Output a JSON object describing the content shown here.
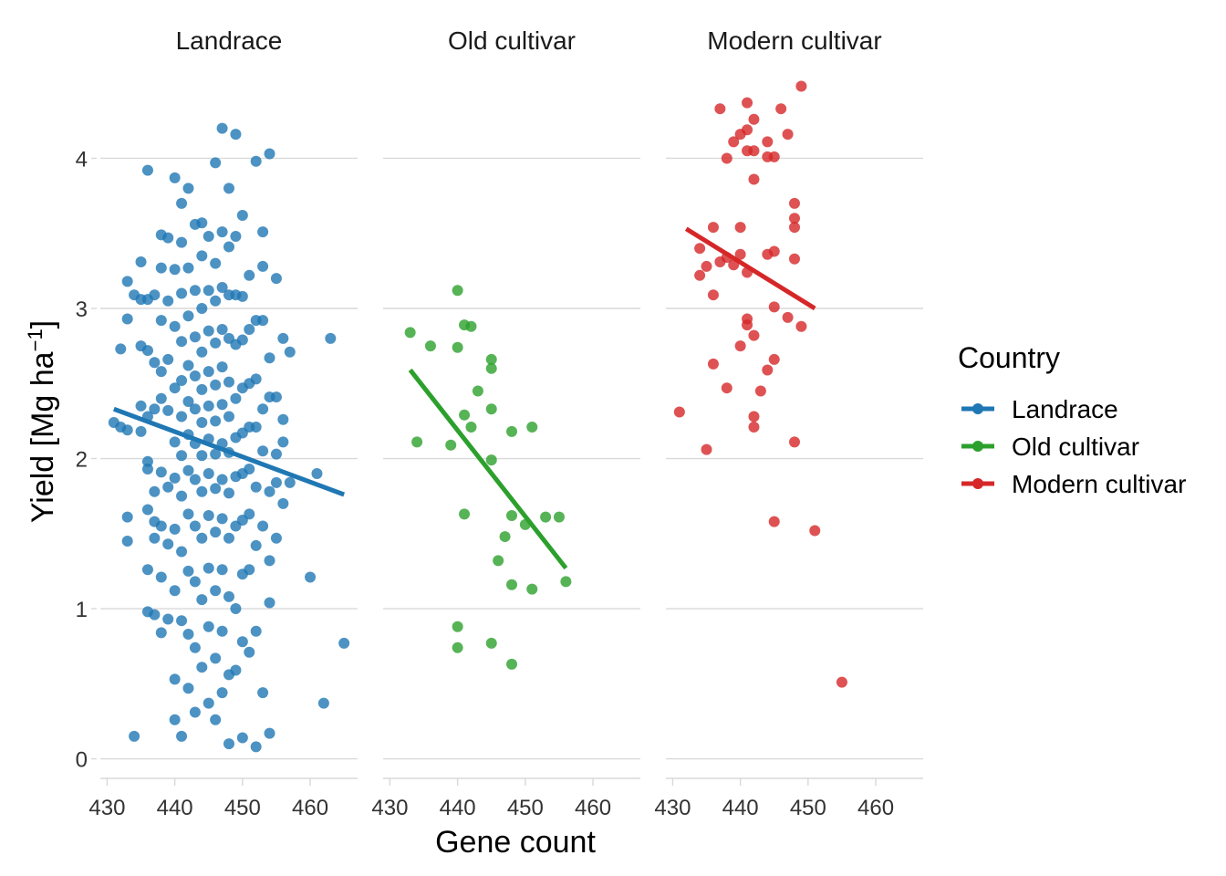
{
  "chart_data": {
    "type": "scatter",
    "facets": [
      {
        "title": "Landrace",
        "color": "#1f77b4",
        "fit": {
          "x": [
            431,
            465
          ],
          "y": [
            2.33,
            1.76
          ]
        },
        "points": [
          [
            431,
            2.24
          ],
          [
            432,
            2.21
          ],
          [
            433,
            2.19
          ],
          [
            432,
            2.73
          ],
          [
            433,
            3.18
          ],
          [
            433,
            2.93
          ],
          [
            433,
            1.61
          ],
          [
            433,
            1.45
          ],
          [
            434,
            0.15
          ],
          [
            434,
            3.09
          ],
          [
            435,
            3.31
          ],
          [
            435,
            3.06
          ],
          [
            435,
            2.75
          ],
          [
            435,
            2.35
          ],
          [
            435,
            2.18
          ],
          [
            436,
            3.92
          ],
          [
            436,
            3.06
          ],
          [
            436,
            2.72
          ],
          [
            436,
            2.28
          ],
          [
            436,
            1.98
          ],
          [
            436,
            1.93
          ],
          [
            436,
            1.66
          ],
          [
            436,
            1.26
          ],
          [
            436,
            0.98
          ],
          [
            437,
            3.09
          ],
          [
            437,
            2.64
          ],
          [
            437,
            2.33
          ],
          [
            437,
            1.78
          ],
          [
            437,
            1.58
          ],
          [
            437,
            1.47
          ],
          [
            437,
            0.96
          ],
          [
            438,
            3.49
          ],
          [
            438,
            3.27
          ],
          [
            438,
            2.92
          ],
          [
            438,
            2.58
          ],
          [
            438,
            2.4
          ],
          [
            438,
            1.91
          ],
          [
            438,
            1.55
          ],
          [
            438,
            1.21
          ],
          [
            438,
            0.84
          ],
          [
            439,
            3.47
          ],
          [
            439,
            3.05
          ],
          [
            439,
            2.66
          ],
          [
            439,
            2.32
          ],
          [
            439,
            1.81
          ],
          [
            439,
            1.43
          ],
          [
            439,
            0.93
          ],
          [
            440,
            3.87
          ],
          [
            440,
            3.26
          ],
          [
            440,
            2.88
          ],
          [
            440,
            2.47
          ],
          [
            440,
            2.11
          ],
          [
            440,
            1.87
          ],
          [
            440,
            1.53
          ],
          [
            440,
            1.12
          ],
          [
            440,
            0.53
          ],
          [
            440,
            0.26
          ],
          [
            441,
            3.7
          ],
          [
            441,
            3.44
          ],
          [
            441,
            3.1
          ],
          [
            441,
            2.78
          ],
          [
            441,
            2.52
          ],
          [
            441,
            2.28
          ],
          [
            441,
            2.02
          ],
          [
            441,
            1.75
          ],
          [
            441,
            1.38
          ],
          [
            441,
            0.92
          ],
          [
            441,
            0.15
          ],
          [
            442,
            3.8
          ],
          [
            442,
            3.27
          ],
          [
            442,
            2.95
          ],
          [
            442,
            2.62
          ],
          [
            442,
            2.38
          ],
          [
            442,
            2.16
          ],
          [
            442,
            1.92
          ],
          [
            442,
            1.63
          ],
          [
            442,
            1.25
          ],
          [
            442,
            0.83
          ],
          [
            442,
            0.47
          ],
          [
            443,
            3.56
          ],
          [
            443,
            3.12
          ],
          [
            443,
            2.81
          ],
          [
            443,
            2.55
          ],
          [
            443,
            2.33
          ],
          [
            443,
            2.1
          ],
          [
            443,
            1.86
          ],
          [
            443,
            1.55
          ],
          [
            443,
            1.18
          ],
          [
            443,
            0.74
          ],
          [
            443,
            0.31
          ],
          [
            444,
            3.57
          ],
          [
            444,
            3.35
          ],
          [
            444,
            3.0
          ],
          [
            444,
            2.71
          ],
          [
            444,
            2.46
          ],
          [
            444,
            2.24
          ],
          [
            444,
            2.02
          ],
          [
            444,
            1.78
          ],
          [
            444,
            1.47
          ],
          [
            444,
            1.06
          ],
          [
            444,
            0.61
          ],
          [
            445,
            3.48
          ],
          [
            445,
            3.12
          ],
          [
            445,
            2.85
          ],
          [
            445,
            2.58
          ],
          [
            445,
            2.35
          ],
          [
            445,
            2.13
          ],
          [
            445,
            1.9
          ],
          [
            445,
            1.62
          ],
          [
            445,
            1.27
          ],
          [
            445,
            0.88
          ],
          [
            445,
            0.37
          ],
          [
            446,
            3.97
          ],
          [
            446,
            3.3
          ],
          [
            446,
            3.05
          ],
          [
            446,
            2.77
          ],
          [
            446,
            2.49
          ],
          [
            446,
            2.25
          ],
          [
            446,
            2.03
          ],
          [
            446,
            1.8
          ],
          [
            446,
            1.51
          ],
          [
            446,
            1.12
          ],
          [
            446,
            0.67
          ],
          [
            446,
            0.26
          ],
          [
            447,
            4.2
          ],
          [
            447,
            3.51
          ],
          [
            447,
            3.14
          ],
          [
            447,
            2.86
          ],
          [
            447,
            2.61
          ],
          [
            447,
            2.36
          ],
          [
            447,
            2.1
          ],
          [
            447,
            1.86
          ],
          [
            447,
            1.6
          ],
          [
            447,
            1.26
          ],
          [
            447,
            0.85
          ],
          [
            447,
            0.44
          ],
          [
            448,
            3.8
          ],
          [
            448,
            3.41
          ],
          [
            448,
            3.09
          ],
          [
            448,
            2.8
          ],
          [
            448,
            2.51
          ],
          [
            448,
            2.28
          ],
          [
            448,
            2.04
          ],
          [
            448,
            1.77
          ],
          [
            448,
            1.47
          ],
          [
            448,
            1.08
          ],
          [
            448,
            0.56
          ],
          [
            448,
            0.1
          ],
          [
            449,
            4.16
          ],
          [
            449,
            3.48
          ],
          [
            449,
            3.09
          ],
          [
            449,
            2.76
          ],
          [
            449,
            2.4
          ],
          [
            449,
            2.14
          ],
          [
            449,
            1.88
          ],
          [
            449,
            1.55
          ],
          [
            449,
            1.0
          ],
          [
            449,
            0.59
          ],
          [
            450,
            3.62
          ],
          [
            450,
            3.08
          ],
          [
            450,
            2.79
          ],
          [
            450,
            2.47
          ],
          [
            450,
            2.17
          ],
          [
            450,
            1.9
          ],
          [
            450,
            1.59
          ],
          [
            450,
            1.23
          ],
          [
            450,
            0.78
          ],
          [
            450,
            0.14
          ],
          [
            451,
            3.22
          ],
          [
            451,
            2.86
          ],
          [
            451,
            2.5
          ],
          [
            451,
            2.21
          ],
          [
            451,
            1.93
          ],
          [
            451,
            1.63
          ],
          [
            451,
            1.26
          ],
          [
            451,
            0.71
          ],
          [
            452,
            3.98
          ],
          [
            452,
            2.92
          ],
          [
            452,
            2.53
          ],
          [
            452,
            2.21
          ],
          [
            452,
            1.81
          ],
          [
            452,
            1.42
          ],
          [
            452,
            0.85
          ],
          [
            452,
            0.08
          ],
          [
            453,
            3.51
          ],
          [
            453,
            3.28
          ],
          [
            453,
            2.92
          ],
          [
            453,
            2.33
          ],
          [
            453,
            2.05
          ],
          [
            453,
            1.55
          ],
          [
            453,
            0.44
          ],
          [
            454,
            4.03
          ],
          [
            454,
            2.67
          ],
          [
            454,
            2.41
          ],
          [
            454,
            1.78
          ],
          [
            454,
            1.32
          ],
          [
            454,
            1.04
          ],
          [
            454,
            0.17
          ],
          [
            455,
            3.2
          ],
          [
            455,
            2.41
          ],
          [
            455,
            2.03
          ],
          [
            455,
            1.84
          ],
          [
            455,
            1.47
          ],
          [
            456,
            2.8
          ],
          [
            456,
            2.26
          ],
          [
            456,
            2.11
          ],
          [
            456,
            1.7
          ],
          [
            457,
            2.71
          ],
          [
            457,
            1.84
          ],
          [
            460,
            1.21
          ],
          [
            461,
            1.9
          ],
          [
            462,
            0.37
          ],
          [
            463,
            2.8
          ],
          [
            465,
            0.77
          ]
        ]
      },
      {
        "title": "Old cultivar",
        "color": "#2ca02c",
        "fit": {
          "x": [
            433,
            456
          ],
          "y": [
            2.59,
            1.27
          ]
        },
        "points": [
          [
            433,
            2.84
          ],
          [
            434,
            2.11
          ],
          [
            436,
            2.75
          ],
          [
            439,
            2.09
          ],
          [
            440,
            3.12
          ],
          [
            440,
            2.74
          ],
          [
            440,
            0.88
          ],
          [
            440,
            0.74
          ],
          [
            441,
            2.89
          ],
          [
            441,
            2.29
          ],
          [
            441,
            1.63
          ],
          [
            442,
            2.88
          ],
          [
            442,
            2.21
          ],
          [
            443,
            2.45
          ],
          [
            445,
            2.66
          ],
          [
            445,
            2.6
          ],
          [
            445,
            2.33
          ],
          [
            445,
            1.99
          ],
          [
            445,
            0.77
          ],
          [
            446,
            1.32
          ],
          [
            447,
            1.48
          ],
          [
            448,
            2.18
          ],
          [
            448,
            1.62
          ],
          [
            448,
            1.16
          ],
          [
            448,
            0.63
          ],
          [
            450,
            1.56
          ],
          [
            451,
            2.21
          ],
          [
            451,
            1.13
          ],
          [
            453,
            1.61
          ],
          [
            455,
            1.61
          ],
          [
            456,
            1.18
          ]
        ]
      },
      {
        "title": "Modern cultivar",
        "color": "#d62728",
        "fit": {
          "x": [
            432,
            451
          ],
          "y": [
            3.53,
            3.0
          ]
        },
        "points": [
          [
            431,
            2.31
          ],
          [
            434,
            3.4
          ],
          [
            434,
            3.22
          ],
          [
            435,
            3.28
          ],
          [
            435,
            2.06
          ],
          [
            436,
            3.54
          ],
          [
            436,
            3.09
          ],
          [
            436,
            2.63
          ],
          [
            437,
            4.33
          ],
          [
            437,
            3.31
          ],
          [
            438,
            4.0
          ],
          [
            438,
            3.34
          ],
          [
            438,
            2.47
          ],
          [
            439,
            4.11
          ],
          [
            439,
            3.29
          ],
          [
            440,
            4.16
          ],
          [
            440,
            3.54
          ],
          [
            440,
            3.36
          ],
          [
            440,
            2.75
          ],
          [
            441,
            4.37
          ],
          [
            441,
            4.19
          ],
          [
            441,
            4.05
          ],
          [
            441,
            3.24
          ],
          [
            441,
            2.93
          ],
          [
            441,
            2.89
          ],
          [
            442,
            4.26
          ],
          [
            442,
            4.05
          ],
          [
            442,
            3.86
          ],
          [
            442,
            2.82
          ],
          [
            442,
            2.28
          ],
          [
            442,
            2.21
          ],
          [
            443,
            2.45
          ],
          [
            444,
            4.11
          ],
          [
            444,
            4.01
          ],
          [
            444,
            3.36
          ],
          [
            444,
            2.59
          ],
          [
            445,
            4.01
          ],
          [
            445,
            3.38
          ],
          [
            445,
            3.01
          ],
          [
            445,
            2.66
          ],
          [
            445,
            1.58
          ],
          [
            446,
            4.33
          ],
          [
            447,
            4.16
          ],
          [
            447,
            2.94
          ],
          [
            448,
            3.7
          ],
          [
            448,
            3.6
          ],
          [
            448,
            3.54
          ],
          [
            448,
            3.33
          ],
          [
            448,
            2.11
          ],
          [
            449,
            4.48
          ],
          [
            449,
            2.88
          ],
          [
            451,
            1.52
          ],
          [
            455,
            0.51
          ]
        ]
      }
    ],
    "xlabel": "Gene count",
    "ylabel": "Yield [Mg ha",
    "ylabel_superscript": "−1",
    "ylabel_close": "]",
    "xlim": [
      429,
      467
    ],
    "ylim": [
      -0.1,
      4.55
    ],
    "x_ticks": [
      430,
      440,
      450,
      460
    ],
    "y_ticks": [
      0,
      1,
      2,
      3,
      4
    ],
    "grid": "horizontal major",
    "legend": {
      "title": "Country",
      "position": "right",
      "items": [
        {
          "label": "Landrace",
          "color": "#1f77b4"
        },
        {
          "label": "Old cultivar",
          "color": "#2ca02c"
        },
        {
          "label": "Modern cultivar",
          "color": "#d62728"
        }
      ]
    }
  }
}
